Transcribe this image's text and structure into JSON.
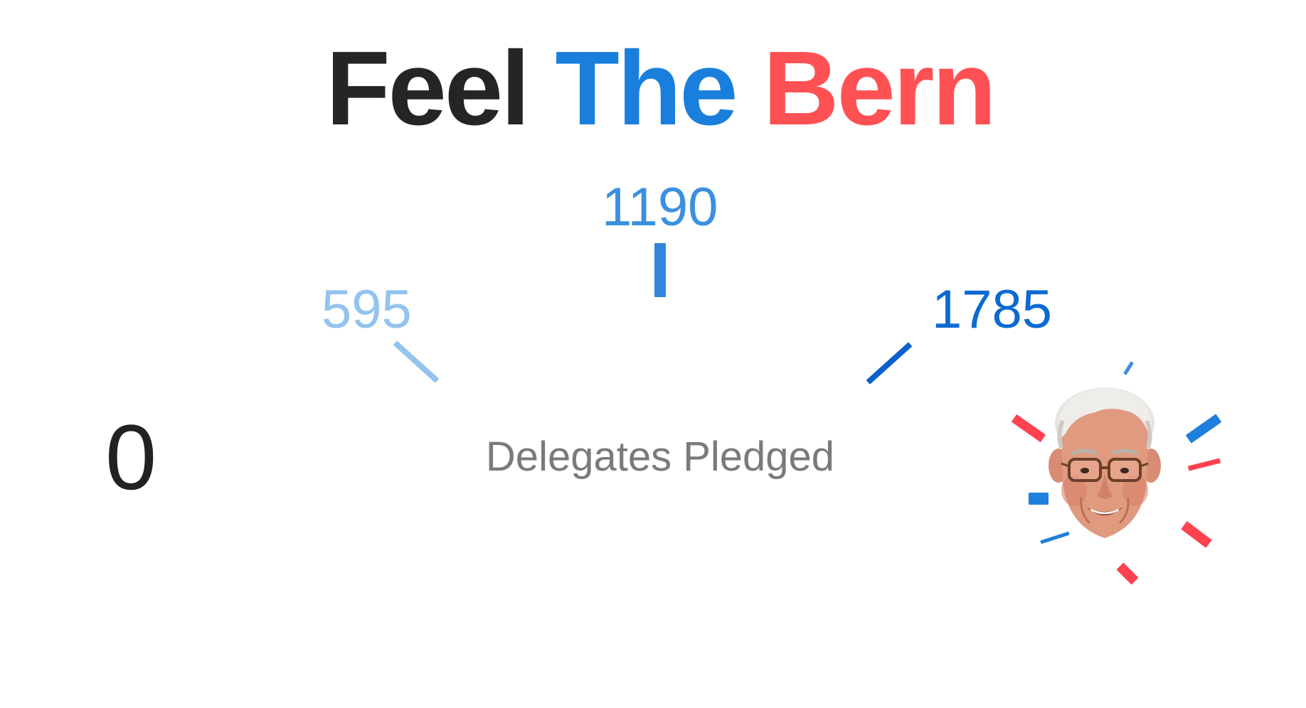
{
  "title": {
    "word1": "Feel",
    "word2": "The",
    "word3": "Bern"
  },
  "gauge": {
    "start_value": "0",
    "ticks": [
      {
        "label": "595",
        "color": "#93c3ef"
      },
      {
        "label": "1190",
        "color": "#3a8fe0"
      },
      {
        "label": "1785",
        "color": "#0c6ad3"
      }
    ],
    "caption": "Delegates Pledged",
    "current_value": 0
  },
  "colors": {
    "dark": "#252525",
    "blue": "#1a7fdc",
    "red": "#ff5154",
    "caption": "#7a7a7a"
  },
  "avatar": {
    "icon": "candidate-face-icon"
  }
}
